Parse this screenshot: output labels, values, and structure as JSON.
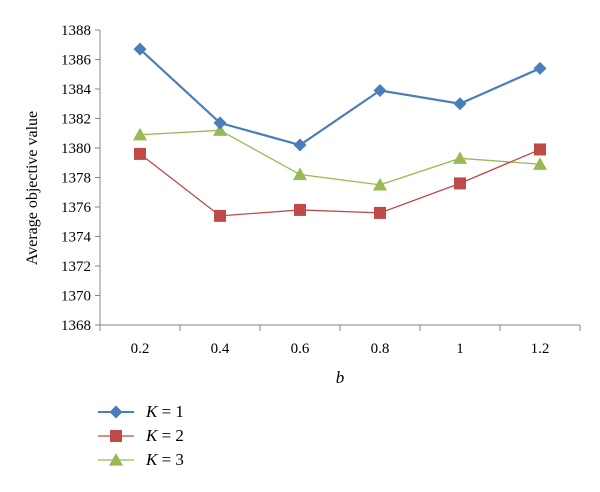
{
  "chart_data": {
    "type": "line",
    "title": "",
    "xlabel": "b",
    "ylabel": "Average objective value",
    "categories": [
      "0.2",
      "0.4",
      "0.6",
      "0.8",
      "1",
      "1.2"
    ],
    "ylim": [
      1368,
      1388
    ],
    "yticks": [
      "1368",
      "1370",
      "1372",
      "1374",
      "1376",
      "1378",
      "1380",
      "1382",
      "1384",
      "1386",
      "1388"
    ],
    "grid": false,
    "legend_position": "bottom-left",
    "series": [
      {
        "name": "K = 1",
        "legend_var": "K",
        "legend_rest": " = 1",
        "marker": "diamond",
        "color": "#4a7ebb",
        "values": [
          1386.7,
          1381.7,
          1380.2,
          1383.9,
          1383.0,
          1385.4
        ]
      },
      {
        "name": "K = 2",
        "legend_var": "K",
        "legend_rest": " = 2",
        "marker": "square",
        "color": "#be4b48",
        "values": [
          1379.6,
          1375.4,
          1375.8,
          1375.6,
          1377.6,
          1379.9
        ]
      },
      {
        "name": "K = 3",
        "legend_var": "K",
        "legend_rest": " = 3",
        "marker": "triangle",
        "color": "#98b954",
        "values": [
          1380.9,
          1381.2,
          1378.2,
          1377.5,
          1379.3,
          1378.9
        ]
      }
    ]
  }
}
